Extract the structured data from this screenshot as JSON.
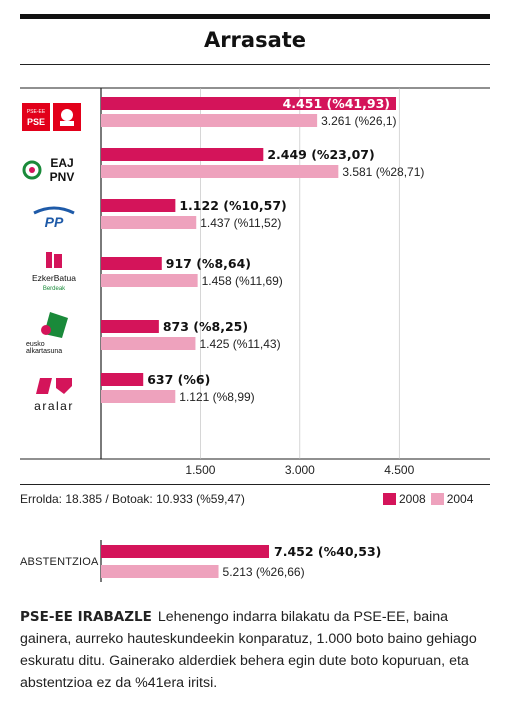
{
  "title": "Arrasate",
  "colors": {
    "y2008": "#d4145a",
    "y2004": "#eea2bd",
    "axis": "#222222"
  },
  "chart_data": {
    "type": "bar",
    "categories": [
      "PSE",
      "EAJ PNV",
      "PP",
      "EzkerBatua Berdeak",
      "Eusko Alkartasuna",
      "Aralar"
    ],
    "series": [
      {
        "name": "2008",
        "values": [
          4451,
          2449,
          1122,
          917,
          873,
          637
        ],
        "labels": [
          "4.451 (%41,93)",
          "2.449 (%23,07)",
          "1.122 (%10,57)",
          "917 (%8,64)",
          "873 (%8,25)",
          "637 (%6)"
        ]
      },
      {
        "name": "2004",
        "values": [
          3261,
          3581,
          1437,
          1458,
          1425,
          1121
        ],
        "labels": [
          "3.261 (%26,1)",
          "3.581 (%28,71)",
          "1.437 (%11,52)",
          "1.458 (%11,69)",
          "1.425 (%11,43)",
          "1.121 (%8,99)"
        ]
      }
    ],
    "x_ticks": [
      1500,
      3000,
      4500
    ],
    "x_tick_labels": [
      "1.500",
      "3.000",
      "4.500"
    ],
    "xlim": [
      0,
      5000
    ],
    "legend_position": "bottom-right"
  },
  "logos": [
    {
      "icon": "pse-logo-icon",
      "text": "PSE"
    },
    {
      "icon": "eaj-pnv-logo-icon",
      "text": "EAJ PNV"
    },
    {
      "icon": "pp-logo-icon",
      "text": "PP"
    },
    {
      "icon": "ezker-batua-logo-icon",
      "text": "EzkerBatua Berdeak"
    },
    {
      "icon": "eusko-alkartasuna-logo-icon",
      "text": "eusko alkartasuna"
    },
    {
      "icon": "aralar-logo-icon",
      "text": "aralar"
    }
  ],
  "footer": {
    "census": "Errolda: 18.385  /  Botoak: 10.933 (%59,47)",
    "legend": [
      "2008",
      "2004"
    ]
  },
  "abstention": {
    "label": "ABSTENTZIOA",
    "values": [
      7452,
      5213
    ],
    "labels": [
      "7.452 (%40,53)",
      "5.213 (%26,66)"
    ]
  },
  "article": {
    "lead": "PSE-EE IRABAZLE",
    "text": "Lehenengo indarra bilakatu da PSE-EE, baina gainera, aurreko hauteskundeekin konparatuz, 1.000 boto baino gehiago eskuratu ditu. Gainerako alderdiek behera egin dute boto kopuruan, eta abstentzioa ez da %41era iritsi."
  }
}
